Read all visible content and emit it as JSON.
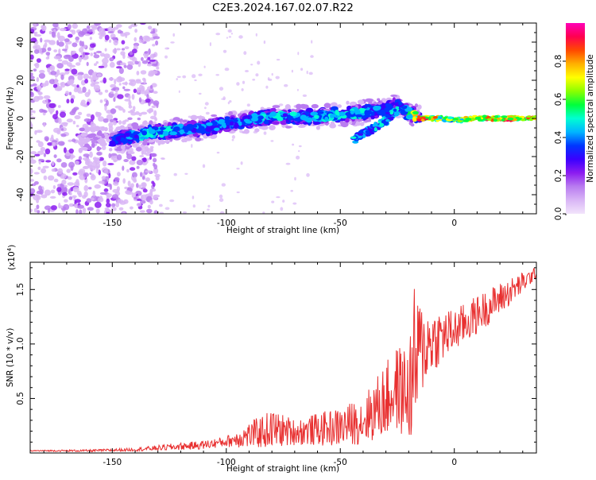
{
  "title": "C2E3.2024.167.02.07.R22",
  "colors": {
    "background": "#ffffff",
    "axis": "#000000",
    "snr_line": "#e83030",
    "colormap": [
      "#f2e4fb",
      "#d9b6f6",
      "#b97cf0",
      "#8c1cf0",
      "#3a00ff",
      "#0036ff",
      "#00b6ff",
      "#00ffd2",
      "#00ff3c",
      "#8cff00",
      "#ffff00",
      "#ffb000",
      "#ff4a00",
      "#ff0050",
      "#ff00b8"
    ]
  },
  "chart_data": [
    {
      "type": "heatmap",
      "title": "C2E3.2024.167.02.07.R22",
      "xlabel": "Height of straight line (km)",
      "ylabel": "Frequency (Hz)",
      "xlim": [
        -186,
        36
      ],
      "ylim": [
        -50,
        50
      ],
      "x_ticks": [
        -150,
        -100,
        -50,
        0
      ],
      "x_tick_labels": [
        "-150",
        "-100",
        "-50",
        "0"
      ],
      "y_ticks": [
        -40,
        -20,
        0,
        20,
        40
      ],
      "y_tick_labels": [
        "-40",
        "-20",
        "0",
        "20",
        "40"
      ],
      "colorbar": {
        "label": "Normalized spectral amplitude",
        "range": [
          0,
          1
        ],
        "ticks": [
          0,
          0.2,
          0.4,
          0.6,
          0.8
        ],
        "tick_labels": [
          "0.0",
          "0.2",
          "0.4",
          "0.6",
          "0.8"
        ]
      },
      "ridge": {
        "x": [
          -150,
          -140,
          -130,
          -120,
          -110,
          -100,
          -90,
          -80,
          -70,
          -60,
          -50,
          -40,
          -30,
          -25,
          -20,
          -15,
          -10,
          -5,
          0,
          10,
          20,
          30,
          35
        ],
        "frequency": [
          -11,
          -9,
          -7,
          -6,
          -5,
          -3,
          -1,
          1,
          1,
          1,
          2,
          3,
          5,
          7,
          3,
          0,
          0,
          0,
          -1,
          0,
          0,
          0,
          0
        ],
        "amplitude": [
          0.3,
          0.4,
          0.45,
          0.4,
          0.35,
          0.35,
          0.4,
          0.4,
          0.4,
          0.4,
          0.45,
          0.4,
          0.35,
          0.3,
          0.5,
          0.95,
          0.9,
          0.7,
          0.65,
          0.9,
          0.9,
          0.9,
          0.9
        ]
      },
      "secondary_branch": {
        "x": [
          -45,
          -40,
          -35,
          -30,
          -25
        ],
        "frequency": [
          -12,
          -8,
          -5,
          -1,
          4
        ]
      },
      "noise_region_x": [
        -186,
        -130
      ]
    },
    {
      "type": "line",
      "title": "",
      "xlabel": "Height of straight line (km)",
      "ylabel": "SNR (10 * v/v)",
      "y_multiplier_label": "(x10",
      "y_multiplier_exp": "4",
      "xlim": [
        -186,
        36
      ],
      "ylim": [
        0,
        1.75
      ],
      "x_ticks": [
        -150,
        -100,
        -50,
        0
      ],
      "x_tick_labels": [
        "-150",
        "-100",
        "-50",
        "0"
      ],
      "y_ticks": [
        0.5,
        1.0,
        1.5
      ],
      "y_tick_labels": [
        "0.5",
        "1.0",
        "1.5"
      ],
      "series": [
        {
          "name": "SNR",
          "color": "#e83030",
          "x": [
            -186,
            -160,
            -140,
            -125,
            -110,
            -100,
            -90,
            -80,
            -70,
            -60,
            -50,
            -40,
            -30,
            -25,
            -20,
            -17,
            -15,
            -10,
            -5,
            0,
            10,
            20,
            30,
            36
          ],
          "mean": [
            0.02,
            0.02,
            0.03,
            0.05,
            0.07,
            0.1,
            0.15,
            0.2,
            0.18,
            0.2,
            0.22,
            0.28,
            0.45,
            0.55,
            0.5,
            0.75,
            0.9,
            1.0,
            1.05,
            1.1,
            1.25,
            1.4,
            1.55,
            1.65
          ],
          "spread": [
            0.005,
            0.01,
            0.015,
            0.03,
            0.04,
            0.05,
            0.12,
            0.18,
            0.12,
            0.15,
            0.18,
            0.22,
            0.35,
            0.4,
            0.45,
            0.8,
            0.45,
            0.3,
            0.25,
            0.2,
            0.18,
            0.15,
            0.1,
            0.05
          ]
        }
      ]
    }
  ]
}
